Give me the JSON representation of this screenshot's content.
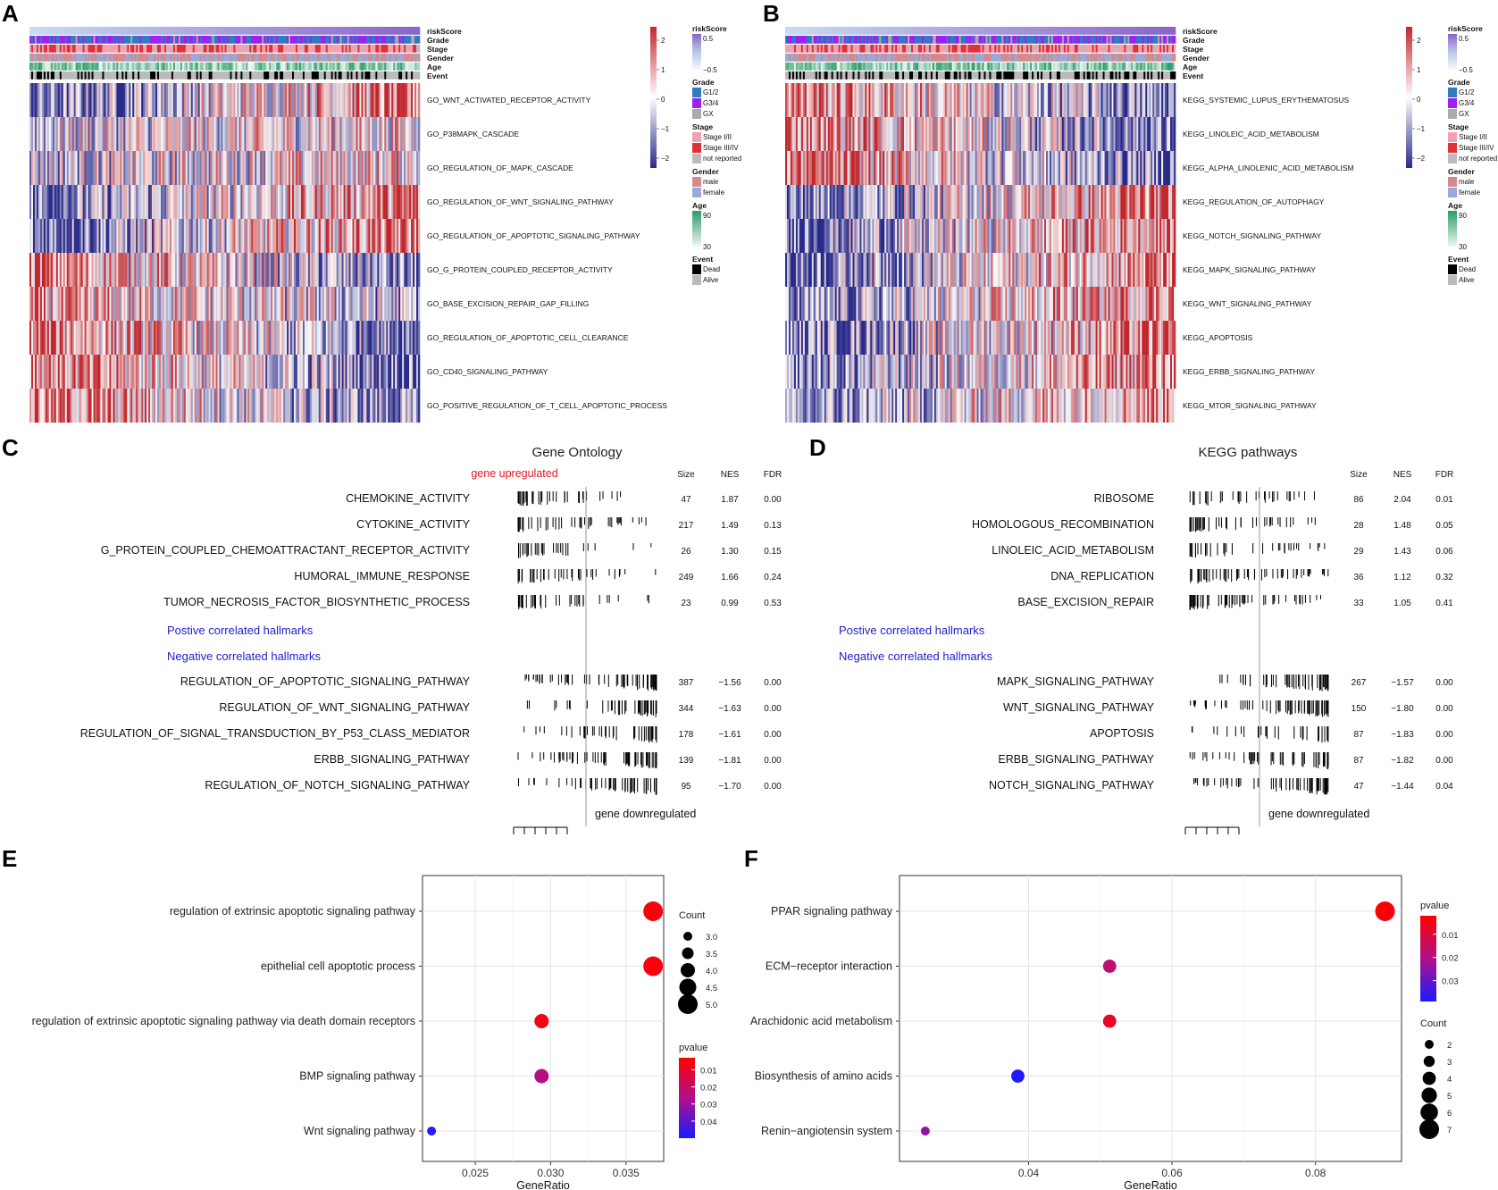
{
  "panels": {
    "a": "A",
    "b": "B",
    "c": "C",
    "d": "D",
    "e": "E",
    "f": "F"
  },
  "chart_data": [
    {
      "id": "A",
      "type": "heatmap",
      "annotation_tracks": [
        "riskScore",
        "Grade",
        "Stage",
        "Gender",
        "Age",
        "Event"
      ],
      "rows": [
        "GO_WNT_ACTIVATED_RECEPTOR_ACTIVITY",
        "GO_P38MAPK_CASCADE",
        "GO_REGULATION_OF_MAPK_CASCADE",
        "GO_REGULATION_OF_WNT_SIGNALING_PATHWAY",
        "GO_REGULATION_OF_APOPTOTIC_SIGNALING_PATHWAY",
        "GO_G_PROTEIN_COUPLED_RECEPTOR_ACTIVITY",
        "GO_BASE_EXCISION_REPAIR_GAP_FILLING",
        "GO_REGULATION_OF_APOPTOTIC_CELL_CLEARANCE",
        "GO_CD40_SIGNALING_PATHWAY",
        "GO_POSITIVE_REGULATION_OF_T_CELL_APOPTOTIC_PROCESS"
      ],
      "row_trend": [
        1,
        0.2,
        0.3,
        1,
        1,
        -1,
        -0.5,
        -1,
        -1,
        -1
      ],
      "scale_ticks": [
        "2",
        "1",
        "0",
        "−1",
        "−2"
      ],
      "legends": [
        {
          "title": "riskScore",
          "entries": [
            "0.5",
            "−0.5"
          ]
        },
        {
          "title": "Grade",
          "entries": [
            "G1/2",
            "G3/4",
            "GX"
          ],
          "colors": [
            "#2f7bbf",
            "#a020f0",
            "#aaaaaa"
          ]
        },
        {
          "title": "Stage",
          "entries": [
            "Stage I/II",
            "Stage III/IV",
            "not reported"
          ],
          "colors": [
            "#f4a0b0",
            "#e0303a",
            "#bbbbbb"
          ]
        },
        {
          "title": "Gender",
          "entries": [
            "male",
            "female"
          ],
          "colors": [
            "#d48a8a",
            "#9aa9d8"
          ]
        },
        {
          "title": "Age",
          "entries": [
            "90",
            "30"
          ]
        },
        {
          "title": "Event",
          "entries": [
            "Dead",
            "Alive"
          ],
          "colors": [
            "#000000",
            "#bbbbbb"
          ]
        }
      ]
    },
    {
      "id": "B",
      "type": "heatmap",
      "annotation_tracks": [
        "riskScore",
        "Grade",
        "Stage",
        "Gender",
        "Age",
        "Event"
      ],
      "rows": [
        "KEGG_SYSTEMIC_LUPUS_ERYTHEMATOSUS",
        "KEGG_LINOLEIC_ACID_METABOLISM",
        "KEGG_ALPHA_LINOLENIC_ACID_METABOLISM",
        "KEGG_REGULATION_OF_AUTOPHAGY",
        "KEGG_NOTCH_SIGNALING_PATHWAY",
        "KEGG_MAPK_SIGNALING_PATHWAY",
        "KEGG_WNT_SIGNALING_PATHWAY",
        "KEGG_APOPTOSIS",
        "KEGG_ERBB_SIGNALING_PATHWAY",
        "KEGG_MTOR_SIGNALING_PATHWAY"
      ],
      "row_trend": [
        -1,
        -1,
        -1,
        1,
        1,
        1,
        1,
        1,
        1,
        1
      ],
      "scale_ticks": [
        "2",
        "1",
        "0",
        "−1",
        "−2"
      ],
      "legends": [
        {
          "title": "riskScore",
          "entries": [
            "0.5",
            "−0.5"
          ]
        },
        {
          "title": "Grade",
          "entries": [
            "G1/2",
            "G3/4",
            "GX"
          ],
          "colors": [
            "#2f7bbf",
            "#a020f0",
            "#aaaaaa"
          ]
        },
        {
          "title": "Stage",
          "entries": [
            "Stage I/II",
            "Stage III/IV",
            "not reported"
          ],
          "colors": [
            "#f4a0b0",
            "#e0303a",
            "#bbbbbb"
          ]
        },
        {
          "title": "Gender",
          "entries": [
            "male",
            "female"
          ],
          "colors": [
            "#d48a8a",
            "#9aa9d8"
          ]
        },
        {
          "title": "Age",
          "entries": [
            "90",
            "30"
          ]
        },
        {
          "title": "Event",
          "entries": [
            "Dead",
            "Alive"
          ],
          "colors": [
            "#000000",
            "#bbbbbb"
          ]
        }
      ]
    },
    {
      "id": "C",
      "type": "table",
      "title": "Gene Ontology",
      "up_label": "gene upregulated",
      "down_label": "gene downregulated",
      "columns": [
        "Size",
        "NES",
        "FDR"
      ],
      "positive_label": "Postive correlated hallmarks",
      "negative_label": "Negative correlated hallmarks",
      "up_rows": [
        {
          "name": "CHEMOKINE_ACTIVITY",
          "size": "47",
          "nes": "1.87",
          "fdr": "0.00"
        },
        {
          "name": "CYTOKINE_ACTIVITY",
          "size": "217",
          "nes": "1.49",
          "fdr": "0.13"
        },
        {
          "name": "G_PROTEIN_COUPLED_CHEMOATTRACTANT_RECEPTOR_ACTIVITY",
          "size": "26",
          "nes": "1.30",
          "fdr": "0.15"
        },
        {
          "name": "HUMORAL_IMMUNE_RESPONSE",
          "size": "249",
          "nes": "1.66",
          "fdr": "0.24"
        },
        {
          "name": "TUMOR_NECROSIS_FACTOR_BIOSYNTHETIC_PROCESS",
          "size": "23",
          "nes": "0.99",
          "fdr": "0.53"
        }
      ],
      "down_rows": [
        {
          "name": "REGULATION_OF_APOPTOTIC_SIGNALING_PATHWAY",
          "size": "387",
          "nes": "−1.56",
          "fdr": "0.00"
        },
        {
          "name": "REGULATION_OF_WNT_SIGNALING_PATHWAY",
          "size": "344",
          "nes": "−1.63",
          "fdr": "0.00"
        },
        {
          "name": "REGULATION_OF_SIGNAL_TRANSDUCTION_BY_P53_CLASS_MEDIATOR",
          "size": "178",
          "nes": "−1.61",
          "fdr": "0.00"
        },
        {
          "name": "ERBB_SIGNALING_PATHWAY",
          "size": "139",
          "nes": "−1.81",
          "fdr": "0.00"
        },
        {
          "name": "REGULATION_OF_NOTCH_SIGNALING_PATHWAY",
          "size": "95",
          "nes": "−1.70",
          "fdr": "0.00"
        }
      ]
    },
    {
      "id": "D",
      "type": "table",
      "title": "KEGG pathways",
      "down_label": "gene downregulated",
      "columns": [
        "Size",
        "NES",
        "FDR"
      ],
      "positive_label": "Postive correlated hallmarks",
      "negative_label": "Negative correlated hallmarks",
      "up_rows": [
        {
          "name": "RIBOSOME",
          "size": "86",
          "nes": "2.04",
          "fdr": "0.01"
        },
        {
          "name": "HOMOLOGOUS_RECOMBINATION",
          "size": "28",
          "nes": "1.48",
          "fdr": "0.05"
        },
        {
          "name": "LINOLEIC_ACID_METABOLISM",
          "size": "29",
          "nes": "1.43",
          "fdr": "0.06"
        },
        {
          "name": "DNA_REPLICATION",
          "size": "36",
          "nes": "1.12",
          "fdr": "0.32"
        },
        {
          "name": "BASE_EXCISION_REPAIR",
          "size": "33",
          "nes": "1.05",
          "fdr": "0.41"
        }
      ],
      "down_rows": [
        {
          "name": "MAPK_SIGNALING_PATHWAY",
          "size": "267",
          "nes": "−1.57",
          "fdr": "0.00"
        },
        {
          "name": "WNT_SIGNALING_PATHWAY",
          "size": "150",
          "nes": "−1.80",
          "fdr": "0.00"
        },
        {
          "name": "APOPTOSIS",
          "size": "87",
          "nes": "−1.83",
          "fdr": "0.00"
        },
        {
          "name": "ERBB_SIGNALING_PATHWAY",
          "size": "87",
          "nes": "−1.82",
          "fdr": "0.00"
        },
        {
          "name": "NOTCH_SIGNALING_PATHWAY",
          "size": "47",
          "nes": "−1.44",
          "fdr": "0.04"
        }
      ]
    },
    {
      "id": "E",
      "type": "scatter",
      "xlabel": "GeneRatio",
      "xlim": [
        0.0215,
        0.0375
      ],
      "xticks": [
        0.025,
        0.03,
        0.035
      ],
      "xtick_labels": [
        "0.025",
        "0.030",
        "0.035"
      ],
      "categories": [
        "regulation of extrinsic apoptotic signaling pathway",
        "epithelial cell apoptotic process",
        "regulation of extrinsic apoptotic signaling pathway via death domain receptors",
        "BMP signaling pathway",
        "Wnt signaling pathway"
      ],
      "x": [
        0.0368,
        0.0368,
        0.0294,
        0.0294,
        0.0221
      ],
      "count": [
        5,
        5,
        4,
        4,
        3
      ],
      "pvalue": [
        0.005,
        0.005,
        0.007,
        0.025,
        0.048
      ],
      "size_legend_title": "Count",
      "size_legend": [
        "3.0",
        "3.5",
        "4.0",
        "4.5",
        "5.0"
      ],
      "color_legend_title": "pvalue",
      "color_legend": [
        "0.01",
        "0.02",
        "0.03",
        "0.04"
      ],
      "pvalue_range": [
        0.003,
        0.05
      ]
    },
    {
      "id": "F",
      "type": "scatter",
      "xlabel": "GeneRatio",
      "xlim": [
        0.022,
        0.092
      ],
      "xticks": [
        0.04,
        0.06,
        0.08
      ],
      "xtick_labels": [
        "0.04",
        "0.06",
        "0.08"
      ],
      "categories": [
        "PPAR signaling pathway",
        "ECM−receptor interaction",
        "Arachidonic acid metabolism",
        "Biosynthesis of amino acids",
        "Renin−angiotensin system"
      ],
      "x": [
        0.0897,
        0.0513,
        0.0513,
        0.0385,
        0.0256
      ],
      "count": [
        7,
        4,
        4,
        4,
        2
      ],
      "pvalue": [
        0.003,
        0.017,
        0.007,
        0.038,
        0.024
      ],
      "color_legend_title": "pvalue",
      "color_legend": [
        "0.01",
        "0.02",
        "0.03"
      ],
      "size_legend_title": "Count",
      "size_legend": [
        "2",
        "3",
        "4",
        "5",
        "6",
        "7"
      ],
      "pvalue_range": [
        0.002,
        0.039
      ]
    }
  ]
}
